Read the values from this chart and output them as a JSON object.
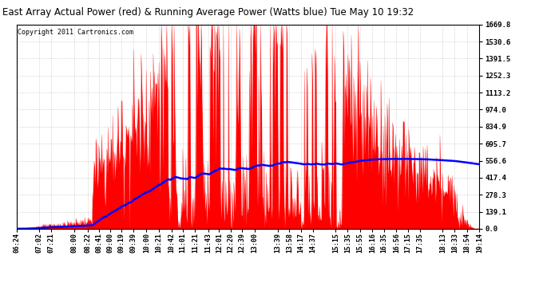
{
  "title": "East Array Actual Power (red) & Running Average Power (Watts blue) Tue May 10 19:32",
  "copyright": "Copyright 2011 Cartronics.com",
  "yticks": [
    0.0,
    139.1,
    278.3,
    417.4,
    556.6,
    695.7,
    834.9,
    974.0,
    1113.2,
    1252.3,
    1391.5,
    1530.6,
    1669.8
  ],
  "ymax": 1669.8,
  "ymin": 0.0,
  "xtick_labels": [
    "06:24",
    "07:02",
    "07:21",
    "08:00",
    "08:22",
    "08:41",
    "09:00",
    "09:19",
    "09:39",
    "10:00",
    "10:21",
    "10:42",
    "11:01",
    "11:21",
    "11:43",
    "12:01",
    "12:20",
    "12:39",
    "13:00",
    "13:39",
    "13:58",
    "14:17",
    "14:37",
    "15:15",
    "15:35",
    "15:55",
    "16:16",
    "16:35",
    "16:56",
    "17:15",
    "17:35",
    "18:13",
    "18:33",
    "18:54",
    "19:14"
  ],
  "actual_color": "#FF0000",
  "average_color": "#0000FF",
  "background_color": "#FFFFFF",
  "grid_color": "#999999",
  "title_bg": "#C8C8C8"
}
